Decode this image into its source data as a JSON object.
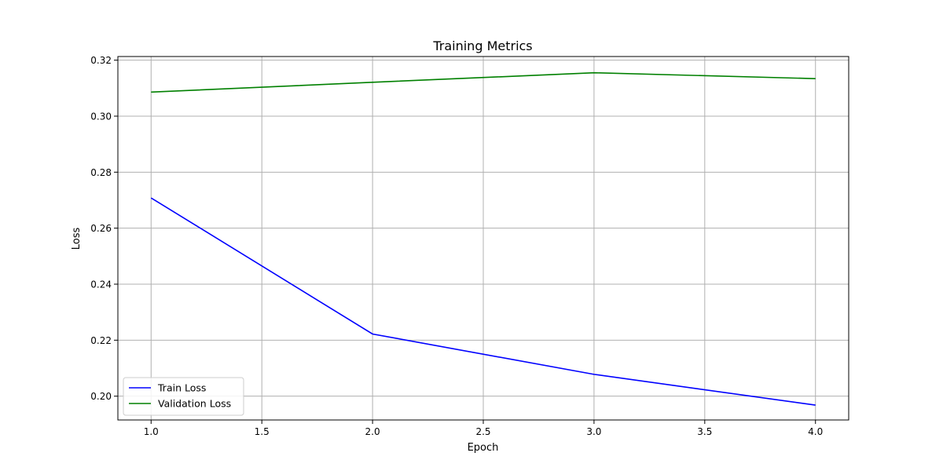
{
  "chart_data": {
    "type": "line",
    "title": "Training Metrics",
    "xlabel": "Epoch",
    "ylabel": "Loss",
    "x": [
      1,
      2,
      3,
      4
    ],
    "xlim": [
      0.85,
      4.15
    ],
    "ylim": [
      0.1915,
      0.3213
    ],
    "x_ticks": [
      1.0,
      1.5,
      2.0,
      2.5,
      3.0,
      3.5,
      4.0
    ],
    "x_tick_labels": [
      "1.0",
      "1.5",
      "2.0",
      "2.5",
      "3.0",
      "3.5",
      "4.0"
    ],
    "y_ticks": [
      0.2,
      0.22,
      0.24,
      0.26,
      0.28,
      0.3,
      0.32
    ],
    "y_tick_labels": [
      "0.20",
      "0.22",
      "0.24",
      "0.26",
      "0.28",
      "0.30",
      "0.32"
    ],
    "grid": true,
    "legend_position": "lower-left",
    "series": [
      {
        "name": "Train Loss",
        "color": "#0000ff",
        "values": [
          0.2708,
          0.2222,
          0.2078,
          0.1968
        ]
      },
      {
        "name": "Validation Loss",
        "color": "#008000",
        "values": [
          0.3086,
          0.3121,
          0.3155,
          0.3134
        ]
      }
    ]
  }
}
